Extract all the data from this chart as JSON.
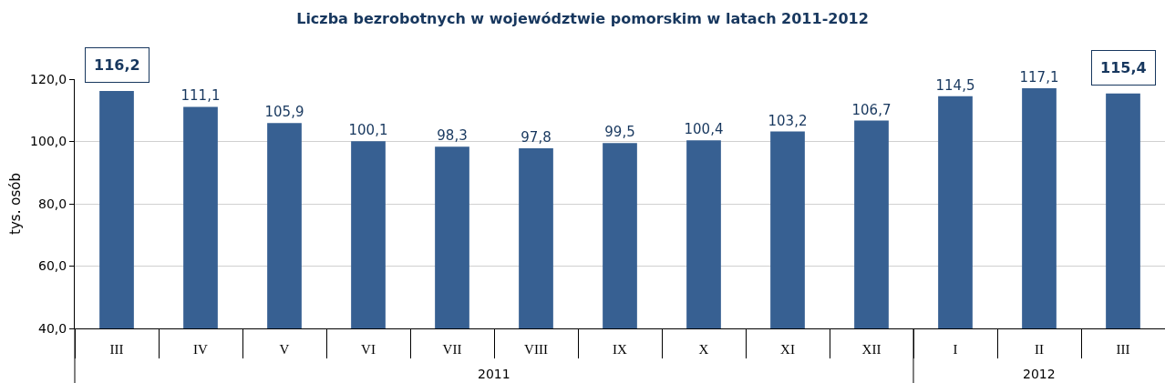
{
  "chart_data": [
    {
      "type": "bar",
      "title": "Liczba bezrobotnych w województwie pomorskim w latach 2011-2012",
      "ylabel": "tys. osób",
      "xlabel": "2011",
      "categories": [
        "III",
        "IV",
        "V",
        "VI",
        "VII",
        "VIII",
        "IX",
        "X",
        "XI",
        "XII"
      ],
      "values": [
        116.2,
        111.1,
        105.9,
        100.1,
        98.3,
        97.8,
        99.5,
        100.4,
        103.2,
        106.7
      ],
      "color": "#376092",
      "value_labels": [
        null,
        "111,1",
        "105,9",
        "100,1",
        "98,3",
        "97,8",
        "99,5",
        "100,4",
        "103,2",
        "106,7"
      ],
      "annotations": [
        {
          "text": "116,2",
          "x": "III",
          "y": 116.2
        }
      ],
      "ylim": [
        40,
        120
      ],
      "yticks": [
        {
          "value": 40,
          "label": "40,0"
        },
        {
          "value": 60,
          "label": "60,0"
        },
        {
          "value": 80,
          "label": "80,0"
        },
        {
          "value": 100,
          "label": "100,0"
        },
        {
          "value": 120,
          "label": "120,0"
        }
      ],
      "grid": "y"
    },
    {
      "type": "bar",
      "xlabel": "2012",
      "categories": [
        "I",
        "II",
        "III"
      ],
      "values": [
        114.5,
        117.1,
        115.4
      ],
      "color": "#376092",
      "value_labels": [
        "114,5",
        "117,1",
        null
      ],
      "annotations": [
        {
          "text": "115,4",
          "x": "III",
          "y": 115.4
        }
      ],
      "ylim": [
        40,
        120
      ],
      "yticks": [
        40,
        60,
        80,
        100,
        120
      ],
      "grid": "y",
      "tick_labels": "x"
    }
  ]
}
